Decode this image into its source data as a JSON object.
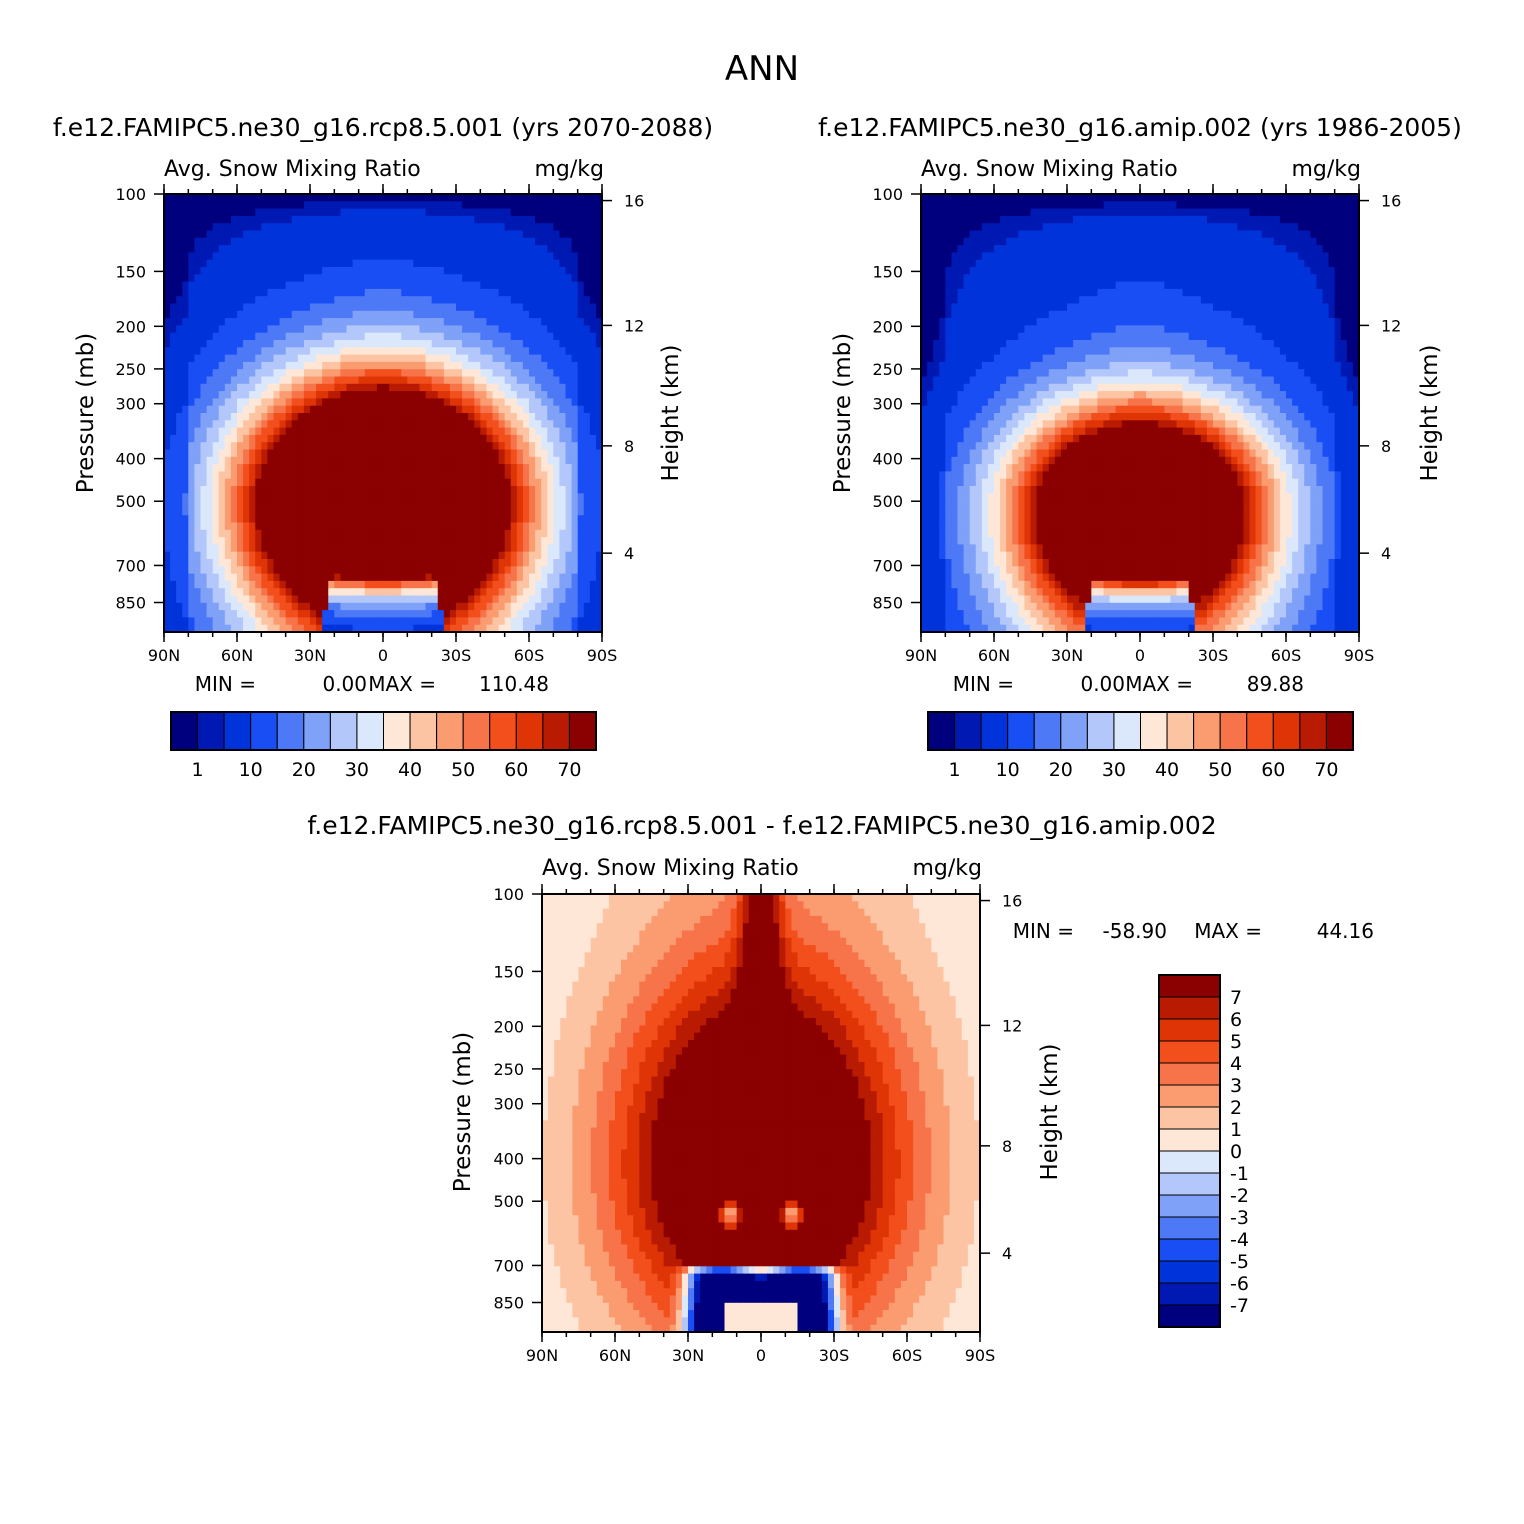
{
  "figure_title": "ANN",
  "palette": {
    "blue_red": [
      "#00007f",
      "#0019b3",
      "#0033d9",
      "#1a4ef5",
      "#4d79f6",
      "#7fa1f7",
      "#b3c7fb",
      "#dbe8fc",
      "#fee7d6",
      "#fcc4a3",
      "#fa9c70",
      "#f7734a",
      "#f24f1c",
      "#df3405",
      "#b81a02",
      "#8b0000"
    ],
    "bg": "#ffffff"
  },
  "chart_data": [
    {
      "type": "heatmap",
      "id": "rcp",
      "case_title": "f.e12.FAMIPC5.ne30_g16.rcp8.5.001 (yrs 2070-2088)",
      "variable": "Avg. Snow Mixing Ratio",
      "units": "mg/kg",
      "xlabel": "",
      "ylabel": "Pressure (mb)",
      "y2label": "Height (km)",
      "x_ticks": [
        "90N",
        "60N",
        "30N",
        "0",
        "30S",
        "60S",
        "90S"
      ],
      "y_ticks": [
        "100",
        "150",
        "200",
        "250",
        "300",
        "400",
        "500",
        "700",
        "850"
      ],
      "y2_ticks": [
        "16",
        "12",
        "8",
        "4"
      ],
      "min_label": "MIN =",
      "min_value": "0.00",
      "max_label": "MAX =",
      "max_value": "110.48",
      "cbar_labels": [
        "1",
        "10",
        "20",
        "30",
        "40",
        "50",
        "60",
        "70"
      ],
      "field": {
        "peak": 110.48,
        "center_lat": 0,
        "center_p": 500,
        "lat_halfwidth": 68,
        "p_top": 260,
        "surface_gap_lat": 20,
        "surface_gap_top_p": 700
      }
    },
    {
      "type": "heatmap",
      "id": "amip",
      "case_title": "f.e12.FAMIPC5.ne30_g16.amip.002 (yrs 1986-2005)",
      "variable": "Avg. Snow Mixing Ratio",
      "units": "mg/kg",
      "xlabel": "",
      "ylabel": "Pressure (mb)",
      "y2label": "Height (km)",
      "x_ticks": [
        "90N",
        "60N",
        "30N",
        "0",
        "30S",
        "60S",
        "90S"
      ],
      "y_ticks": [
        "100",
        "150",
        "200",
        "250",
        "300",
        "400",
        "500",
        "700",
        "850"
      ],
      "y2_ticks": [
        "16",
        "12",
        "8",
        "4"
      ],
      "min_label": "MIN =",
      "min_value": "0.00",
      "max_label": "MAX =",
      "max_value": "89.88",
      "cbar_labels": [
        "1",
        "10",
        "20",
        "30",
        "40",
        "50",
        "60",
        "70"
      ],
      "field": {
        "peak": 89.88,
        "center_lat": 0,
        "center_p": 520,
        "lat_halfwidth": 62,
        "p_top": 300,
        "surface_gap_lat": 18,
        "surface_gap_top_p": 720
      }
    },
    {
      "type": "heatmap",
      "id": "diff",
      "case_title": "f.e12.FAMIPC5.ne30_g16.rcp8.5.001 - f.e12.FAMIPC5.ne30_g16.amip.002",
      "variable": "Avg. Snow Mixing Ratio",
      "units": "mg/kg",
      "xlabel": "",
      "ylabel": "Pressure (mb)",
      "y2label": "Height (km)",
      "x_ticks": [
        "90N",
        "60N",
        "30N",
        "0",
        "30S",
        "60S",
        "90S"
      ],
      "y_ticks": [
        "100",
        "150",
        "200",
        "250",
        "300",
        "400",
        "500",
        "700",
        "850"
      ],
      "y2_ticks": [
        "16",
        "12",
        "8",
        "4"
      ],
      "min_label": "MIN =",
      "min_value": "-58.90",
      "max_label": "MAX =",
      "max_value": "44.16",
      "cbar_labels": [
        "7",
        "6",
        "5",
        "4",
        "3",
        "2",
        "1",
        "0",
        "-1",
        "-2",
        "-3",
        "-4",
        "-5",
        "-6",
        "-7"
      ],
      "field": {
        "peak": 44.16,
        "trough": -58.9
      }
    }
  ]
}
